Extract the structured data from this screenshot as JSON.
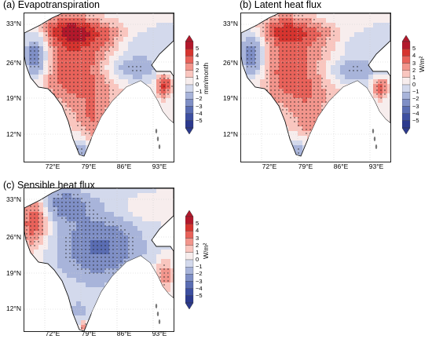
{
  "panels": [
    {
      "id": "a",
      "title": "(a) Evapotranspiration",
      "unit": "mm/month",
      "pattern": "evap",
      "lat_ticks": [
        "33°N",
        "26°N",
        "19°N",
        "12°N"
      ],
      "lon_ticks": [
        "72°E",
        "79°E",
        "86°E",
        "93°E"
      ]
    },
    {
      "id": "b",
      "title": "(b) Latent heat flux",
      "unit": "W/m²",
      "pattern": "latent",
      "lat_ticks": [
        "33°N",
        "26°N",
        "19°N",
        "12°N"
      ],
      "lon_ticks": [
        "72°E",
        "79°E",
        "86°E",
        "93°E"
      ]
    },
    {
      "id": "c",
      "title": "(c) Sensible heat flux",
      "unit": "W/m²",
      "pattern": "sensible",
      "lat_ticks": [
        "33°N",
        "26°N",
        "19°N",
        "12°N"
      ],
      "lon_ticks": [
        "72°E",
        "79°E",
        "86°E",
        "93°E"
      ]
    }
  ],
  "colorbar": {
    "levels": [
      "5",
      "4",
      "3",
      "2",
      "1",
      "0",
      "−1",
      "−2",
      "−3",
      "−4",
      "−5"
    ],
    "colors": [
      "#b2182b",
      "#d6342f",
      "#e8625a",
      "#f2958c",
      "#f9c6bf",
      "#f7eded",
      "#d3d9ec",
      "#a8b4da",
      "#7f8fc6",
      "#5a6db3",
      "#3d4fa1",
      "#2c3a8e"
    ]
  }
}
